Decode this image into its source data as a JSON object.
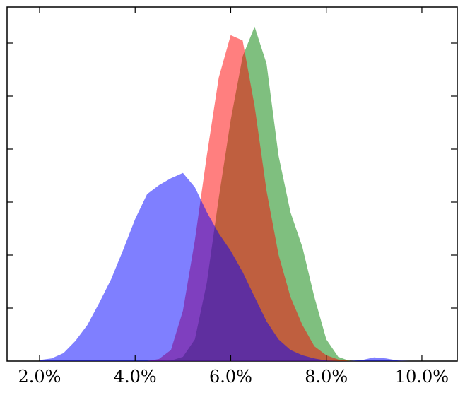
{
  "chart_data": {
    "type": "area",
    "x": [
      2,
      2.25,
      2.5,
      2.75,
      3,
      3.25,
      3.5,
      3.75,
      4,
      4.25,
      4.5,
      4.75,
      5,
      5.25,
      5.5,
      5.75,
      6,
      6.25,
      6.5,
      6.75,
      7,
      7.25,
      7.5,
      7.75,
      8,
      8.25,
      8.5,
      8.75,
      9,
      9.25,
      9.5,
      9.75,
      10
    ],
    "series": [
      {
        "color": "#008000",
        "values": [
          0,
          0,
          0,
          0,
          0,
          0,
          0,
          0,
          0,
          0,
          0,
          0.01,
          0.08,
          0.41,
          1.48,
          3.08,
          4.55,
          5.75,
          6.31,
          5.61,
          3.88,
          2.81,
          2.15,
          1.21,
          0.41,
          0.08,
          0,
          0,
          0,
          0,
          0,
          0,
          0
        ]
      },
      {
        "color": "#ff0000",
        "values": [
          0,
          0,
          0,
          0,
          0,
          0,
          0,
          0,
          0,
          0,
          0.04,
          0.21,
          0.95,
          2.28,
          3.88,
          5.35,
          6.15,
          6.05,
          4.81,
          3.21,
          2.01,
          1.21,
          0.68,
          0.28,
          0.11,
          0.03,
          0,
          0,
          0,
          0,
          0,
          0,
          0
        ]
      },
      {
        "color": "#0000ff",
        "values": [
          0.02,
          0.05,
          0.15,
          0.38,
          0.68,
          1.1,
          1.55,
          2.1,
          2.68,
          3.15,
          3.32,
          3.45,
          3.55,
          3.28,
          2.81,
          2.41,
          2.08,
          1.68,
          1.21,
          0.75,
          0.41,
          0.21,
          0.11,
          0.05,
          0.01,
          0,
          0,
          0.02,
          0.07,
          0.05,
          0.01,
          0,
          0
        ]
      }
    ],
    "alpha": 0.5,
    "xlim": [
      1.32,
      10.74
    ],
    "ylim": [
      0,
      6.68
    ],
    "xticks": [
      {
        "value": 2,
        "label": "2.0%"
      },
      {
        "value": 4,
        "label": "4.0%"
      },
      {
        "value": 6,
        "label": "6.0%"
      },
      {
        "value": 8,
        "label": "8.0%"
      },
      {
        "value": 10,
        "label": "10.0%"
      }
    ],
    "yticks": [
      1,
      2,
      3,
      4,
      5,
      6
    ]
  }
}
